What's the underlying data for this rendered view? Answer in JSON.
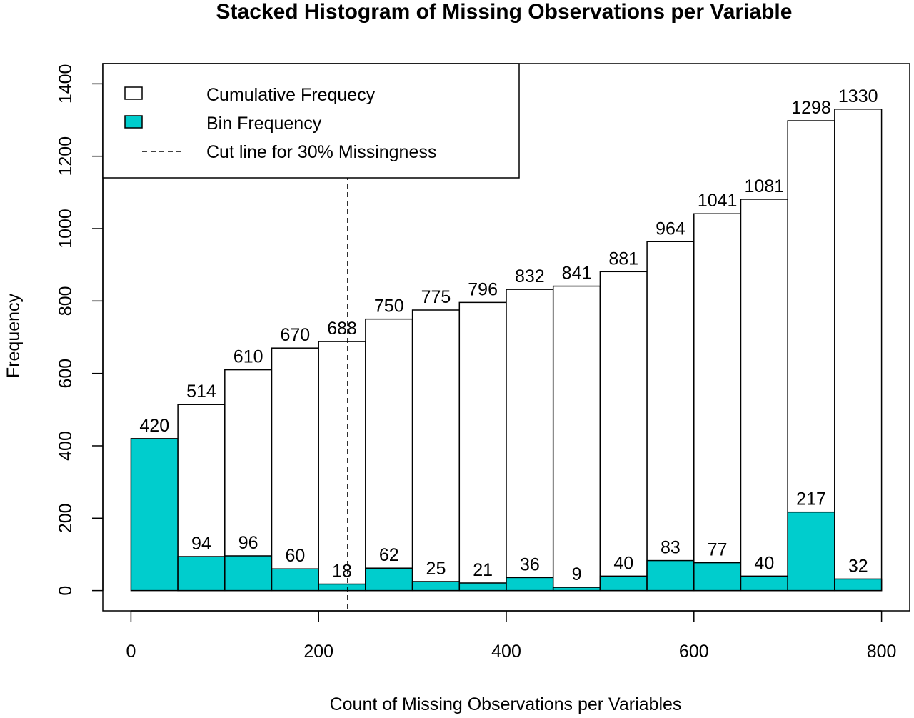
{
  "chart_data": {
    "type": "bar",
    "title": "Stacked Histogram of Missing Observations per Variable",
    "xlabel": "Count of Missing Observations per Variables",
    "ylabel": "Frequency",
    "bin_width": 50,
    "bins": [
      {
        "x0": 0,
        "x1": 50,
        "cumulative": null,
        "bin": 420
      },
      {
        "x0": 50,
        "x1": 100,
        "cumulative": 514,
        "bin": 94
      },
      {
        "x0": 100,
        "x1": 150,
        "cumulative": 610,
        "bin": 96
      },
      {
        "x0": 150,
        "x1": 200,
        "cumulative": 670,
        "bin": 60
      },
      {
        "x0": 200,
        "x1": 250,
        "cumulative": 688,
        "bin": 18
      },
      {
        "x0": 250,
        "x1": 300,
        "cumulative": 750,
        "bin": 62
      },
      {
        "x0": 300,
        "x1": 350,
        "cumulative": 775,
        "bin": 25
      },
      {
        "x0": 350,
        "x1": 400,
        "cumulative": 796,
        "bin": 21
      },
      {
        "x0": 400,
        "x1": 450,
        "cumulative": 832,
        "bin": 36
      },
      {
        "x0": 450,
        "x1": 500,
        "cumulative": 841,
        "bin": 9
      },
      {
        "x0": 500,
        "x1": 550,
        "cumulative": 881,
        "bin": 40
      },
      {
        "x0": 550,
        "x1": 600,
        "cumulative": 964,
        "bin": 83
      },
      {
        "x0": 600,
        "x1": 650,
        "cumulative": 1041,
        "bin": 77
      },
      {
        "x0": 650,
        "x1": 700,
        "cumulative": 1081,
        "bin": 40
      },
      {
        "x0": 700,
        "x1": 750,
        "cumulative": 1298,
        "bin": 217
      },
      {
        "x0": 750,
        "x1": 800,
        "cumulative": 1330,
        "bin": 32
      }
    ],
    "series": [
      {
        "name": "Cumulative Frequecy",
        "color": "#ffffff"
      },
      {
        "name": "Bin Frequency",
        "color": "#00cdcd"
      }
    ],
    "cut_line": {
      "label": "Cut line for 30% Missingness",
      "x": 231
    },
    "xlim": [
      -30,
      830
    ],
    "ylim": [
      -56,
      1456
    ],
    "xticks": [
      0,
      200,
      400,
      600,
      800
    ],
    "yticks": [
      0,
      200,
      400,
      600,
      800,
      1000,
      1200,
      1400
    ],
    "grid": false,
    "legend_position": "top-left"
  }
}
